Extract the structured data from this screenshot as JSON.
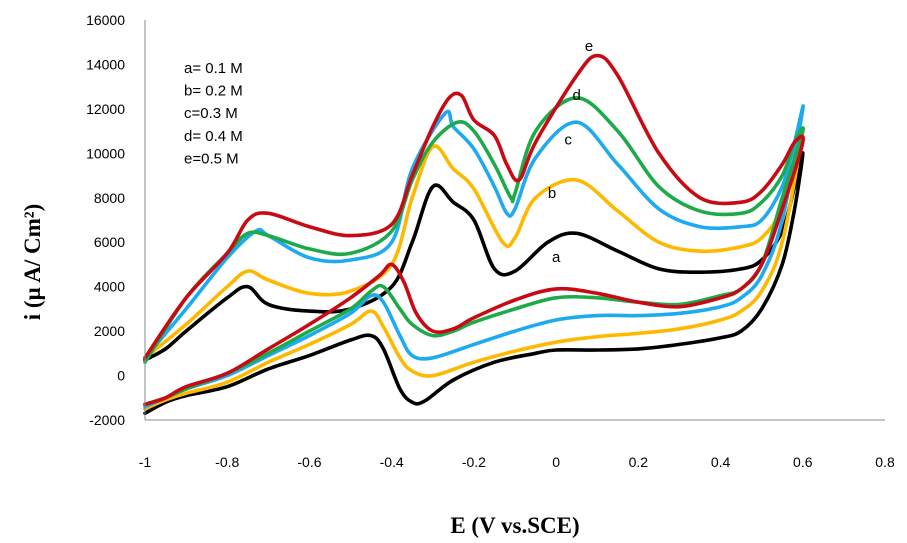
{
  "chart_data": {
    "type": "line",
    "xlabel": "E (V vs.SCE)",
    "ylabel": "i (µ A/ Cm²)",
    "xlim": [
      -1,
      0.8
    ],
    "ylim": [
      -2000,
      16000
    ],
    "x_ticks": [
      "-1",
      "-0.8",
      "-0.6",
      "-0.4",
      "-0.2",
      "0",
      "0.2",
      "0.4",
      "0.6",
      "0.8"
    ],
    "y_ticks": [
      "-2000",
      "0",
      "2000",
      "4000",
      "6000",
      "8000",
      "10000",
      "12000",
      "14000",
      "16000"
    ],
    "grid": false,
    "legend_position": "top-left",
    "legend": [
      "a= 0.1 M",
      "b= 0.2 M",
      "c=0.3  M",
      "d= 0.4 M",
      "e=0.5 M"
    ],
    "series": [
      {
        "name": "a",
        "color": "#000000",
        "label_at": [
          -0.01,
          5100
        ],
        "points": [
          [
            -1,
            -1700
          ],
          [
            -0.95,
            -1200
          ],
          [
            -0.9,
            -900
          ],
          [
            -0.8,
            -500
          ],
          [
            -0.7,
            300
          ],
          [
            -0.6,
            900
          ],
          [
            -0.5,
            1600
          ],
          [
            -0.45,
            1800
          ],
          [
            -0.42,
            1200
          ],
          [
            -0.38,
            -600
          ],
          [
            -0.35,
            -1200
          ],
          [
            -0.32,
            -1150
          ],
          [
            -0.25,
            -200
          ],
          [
            -0.15,
            600
          ],
          [
            -0.05,
            1000
          ],
          [
            0,
            1150
          ],
          [
            0.1,
            1150
          ],
          [
            0.2,
            1200
          ],
          [
            0.3,
            1400
          ],
          [
            0.4,
            1700
          ],
          [
            0.45,
            2000
          ],
          [
            0.5,
            3000
          ],
          [
            0.55,
            5000
          ],
          [
            0.58,
            7500
          ],
          [
            0.6,
            10000
          ],
          [
            0.58,
            8500
          ],
          [
            0.55,
            6500
          ],
          [
            0.5,
            5200
          ],
          [
            0.45,
            4800
          ],
          [
            0.35,
            4650
          ],
          [
            0.25,
            4800
          ],
          [
            0.15,
            5600
          ],
          [
            0.05,
            6400
          ],
          [
            -0.02,
            6000
          ],
          [
            -0.1,
            4700
          ],
          [
            -0.15,
            4800
          ],
          [
            -0.2,
            7000
          ],
          [
            -0.25,
            7800
          ],
          [
            -0.3,
            8500
          ],
          [
            -0.35,
            6000
          ],
          [
            -0.4,
            4000
          ],
          [
            -0.5,
            3000
          ],
          [
            -0.6,
            2900
          ],
          [
            -0.7,
            3200
          ],
          [
            -0.75,
            4000
          ],
          [
            -0.8,
            3500
          ],
          [
            -0.9,
            2000
          ],
          [
            -0.95,
            1200
          ],
          [
            -1,
            700
          ]
        ]
      },
      {
        "name": "b",
        "color": "#FFB800",
        "label_at": [
          -0.02,
          8000
        ],
        "points": [
          [
            -1,
            -1500
          ],
          [
            -0.95,
            -1100
          ],
          [
            -0.9,
            -800
          ],
          [
            -0.8,
            -300
          ],
          [
            -0.7,
            600
          ],
          [
            -0.6,
            1400
          ],
          [
            -0.5,
            2300
          ],
          [
            -0.45,
            2900
          ],
          [
            -0.42,
            2200
          ],
          [
            -0.38,
            800
          ],
          [
            -0.35,
            200
          ],
          [
            -0.3,
            0
          ],
          [
            -0.2,
            600
          ],
          [
            -0.1,
            1100
          ],
          [
            0,
            1500
          ],
          [
            0.1,
            1750
          ],
          [
            0.2,
            1900
          ],
          [
            0.3,
            2100
          ],
          [
            0.4,
            2500
          ],
          [
            0.45,
            2900
          ],
          [
            0.5,
            3800
          ],
          [
            0.55,
            6000
          ],
          [
            0.6,
            11000
          ],
          [
            0.58,
            9500
          ],
          [
            0.55,
            7500
          ],
          [
            0.5,
            6200
          ],
          [
            0.45,
            5800
          ],
          [
            0.35,
            5600
          ],
          [
            0.25,
            6000
          ],
          [
            0.15,
            7400
          ],
          [
            0.05,
            8800
          ],
          [
            -0.05,
            8000
          ],
          [
            -0.1,
            6200
          ],
          [
            -0.13,
            6000
          ],
          [
            -0.2,
            8400
          ],
          [
            -0.25,
            9300
          ],
          [
            -0.3,
            10300
          ],
          [
            -0.35,
            8000
          ],
          [
            -0.4,
            5000
          ],
          [
            -0.5,
            3800
          ],
          [
            -0.6,
            3700
          ],
          [
            -0.7,
            4300
          ],
          [
            -0.75,
            4700
          ],
          [
            -0.8,
            4000
          ],
          [
            -0.9,
            2300
          ],
          [
            -1,
            800
          ]
        ]
      },
      {
        "name": "c",
        "color": "#1EAAF0",
        "label_at": [
          0.02,
          10400
        ],
        "points": [
          [
            -1,
            -1400
          ],
          [
            -0.95,
            -1000
          ],
          [
            -0.9,
            -600
          ],
          [
            -0.8,
            0
          ],
          [
            -0.7,
            900
          ],
          [
            -0.6,
            1800
          ],
          [
            -0.5,
            2800
          ],
          [
            -0.45,
            3600
          ],
          [
            -0.42,
            3300
          ],
          [
            -0.38,
            1800
          ],
          [
            -0.35,
            900
          ],
          [
            -0.3,
            800
          ],
          [
            -0.2,
            1400
          ],
          [
            -0.1,
            2000
          ],
          [
            0,
            2500
          ],
          [
            0.1,
            2700
          ],
          [
            0.2,
            2700
          ],
          [
            0.3,
            2800
          ],
          [
            0.4,
            3100
          ],
          [
            0.45,
            3500
          ],
          [
            0.5,
            4500
          ],
          [
            0.55,
            7000
          ],
          [
            0.6,
            12000
          ],
          [
            0.58,
            10500
          ],
          [
            0.55,
            8500
          ],
          [
            0.5,
            7000
          ],
          [
            0.45,
            6700
          ],
          [
            0.35,
            6700
          ],
          [
            0.25,
            7500
          ],
          [
            0.15,
            9500
          ],
          [
            0.05,
            11400
          ],
          [
            -0.05,
            9800
          ],
          [
            -0.1,
            7500
          ],
          [
            -0.12,
            7300
          ],
          [
            -0.15,
            8500
          ],
          [
            -0.2,
            10200
          ],
          [
            -0.25,
            11200
          ],
          [
            -0.27,
            11800
          ],
          [
            -0.35,
            9300
          ],
          [
            -0.4,
            6000
          ],
          [
            -0.5,
            5200
          ],
          [
            -0.6,
            5300
          ],
          [
            -0.7,
            6300
          ],
          [
            -0.73,
            6500
          ],
          [
            -0.8,
            5300
          ],
          [
            -0.9,
            3000
          ],
          [
            -1,
            800
          ]
        ]
      },
      {
        "name": "d",
        "color": "#1EAA4B",
        "label_at": [
          0.04,
          12400
        ],
        "points": [
          [
            -1,
            -1300
          ],
          [
            -0.95,
            -1000
          ],
          [
            -0.9,
            -600
          ],
          [
            -0.8,
            100
          ],
          [
            -0.7,
            1000
          ],
          [
            -0.6,
            2000
          ],
          [
            -0.5,
            3000
          ],
          [
            -0.45,
            3800
          ],
          [
            -0.42,
            4000
          ],
          [
            -0.38,
            3000
          ],
          [
            -0.35,
            2300
          ],
          [
            -0.3,
            1800
          ],
          [
            -0.25,
            2000
          ],
          [
            -0.2,
            2400
          ],
          [
            -0.1,
            3000
          ],
          [
            0,
            3500
          ],
          [
            0.1,
            3500
          ],
          [
            0.2,
            3300
          ],
          [
            0.3,
            3200
          ],
          [
            0.4,
            3600
          ],
          [
            0.45,
            3900
          ],
          [
            0.5,
            5000
          ],
          [
            0.55,
            8000
          ],
          [
            0.6,
            11000
          ],
          [
            0.58,
            10500
          ],
          [
            0.55,
            9000
          ],
          [
            0.5,
            7800
          ],
          [
            0.45,
            7300
          ],
          [
            0.35,
            7400
          ],
          [
            0.25,
            8500
          ],
          [
            0.15,
            11000
          ],
          [
            0.05,
            12500
          ],
          [
            -0.05,
            11000
          ],
          [
            -0.1,
            8200
          ],
          [
            -0.11,
            8000
          ],
          [
            -0.15,
            9500
          ],
          [
            -0.2,
            11000
          ],
          [
            -0.24,
            11400
          ],
          [
            -0.3,
            10500
          ],
          [
            -0.35,
            8800
          ],
          [
            -0.4,
            6500
          ],
          [
            -0.5,
            5500
          ],
          [
            -0.6,
            5700
          ],
          [
            -0.7,
            6300
          ],
          [
            -0.75,
            6400
          ],
          [
            -0.8,
            5500
          ],
          [
            -0.9,
            3500
          ],
          [
            -1,
            600
          ]
        ]
      },
      {
        "name": "e",
        "color": "#C80A14",
        "label_at": [
          0.07,
          14600
        ],
        "points": [
          [
            -1,
            -1300
          ],
          [
            -0.95,
            -1000
          ],
          [
            -0.9,
            -500
          ],
          [
            -0.8,
            100
          ],
          [
            -0.7,
            1200
          ],
          [
            -0.6,
            2300
          ],
          [
            -0.5,
            3500
          ],
          [
            -0.43,
            4500
          ],
          [
            -0.4,
            5000
          ],
          [
            -0.37,
            4200
          ],
          [
            -0.34,
            2800
          ],
          [
            -0.3,
            2000
          ],
          [
            -0.25,
            2100
          ],
          [
            -0.2,
            2600
          ],
          [
            -0.1,
            3400
          ],
          [
            0,
            3900
          ],
          [
            0.1,
            3700
          ],
          [
            0.2,
            3300
          ],
          [
            0.3,
            3100
          ],
          [
            0.4,
            3500
          ],
          [
            0.45,
            3900
          ],
          [
            0.5,
            5000
          ],
          [
            0.55,
            7500
          ],
          [
            0.6,
            10500
          ],
          [
            0.58,
            10500
          ],
          [
            0.55,
            9500
          ],
          [
            0.5,
            8300
          ],
          [
            0.45,
            7800
          ],
          [
            0.35,
            8000
          ],
          [
            0.25,
            10000
          ],
          [
            0.15,
            13500
          ],
          [
            0.1,
            14400
          ],
          [
            0.05,
            13500
          ],
          [
            -0.05,
            10500
          ],
          [
            -0.09,
            8800
          ],
          [
            -0.12,
            9500
          ],
          [
            -0.15,
            10800
          ],
          [
            -0.2,
            11500
          ],
          [
            -0.23,
            12600
          ],
          [
            -0.26,
            12500
          ],
          [
            -0.3,
            11200
          ],
          [
            -0.35,
            9000
          ],
          [
            -0.4,
            6800
          ],
          [
            -0.5,
            6300
          ],
          [
            -0.6,
            6700
          ],
          [
            -0.7,
            7300
          ],
          [
            -0.75,
            7000
          ],
          [
            -0.8,
            5500
          ],
          [
            -0.9,
            3500
          ],
          [
            -1,
            800
          ]
        ]
      }
    ]
  }
}
